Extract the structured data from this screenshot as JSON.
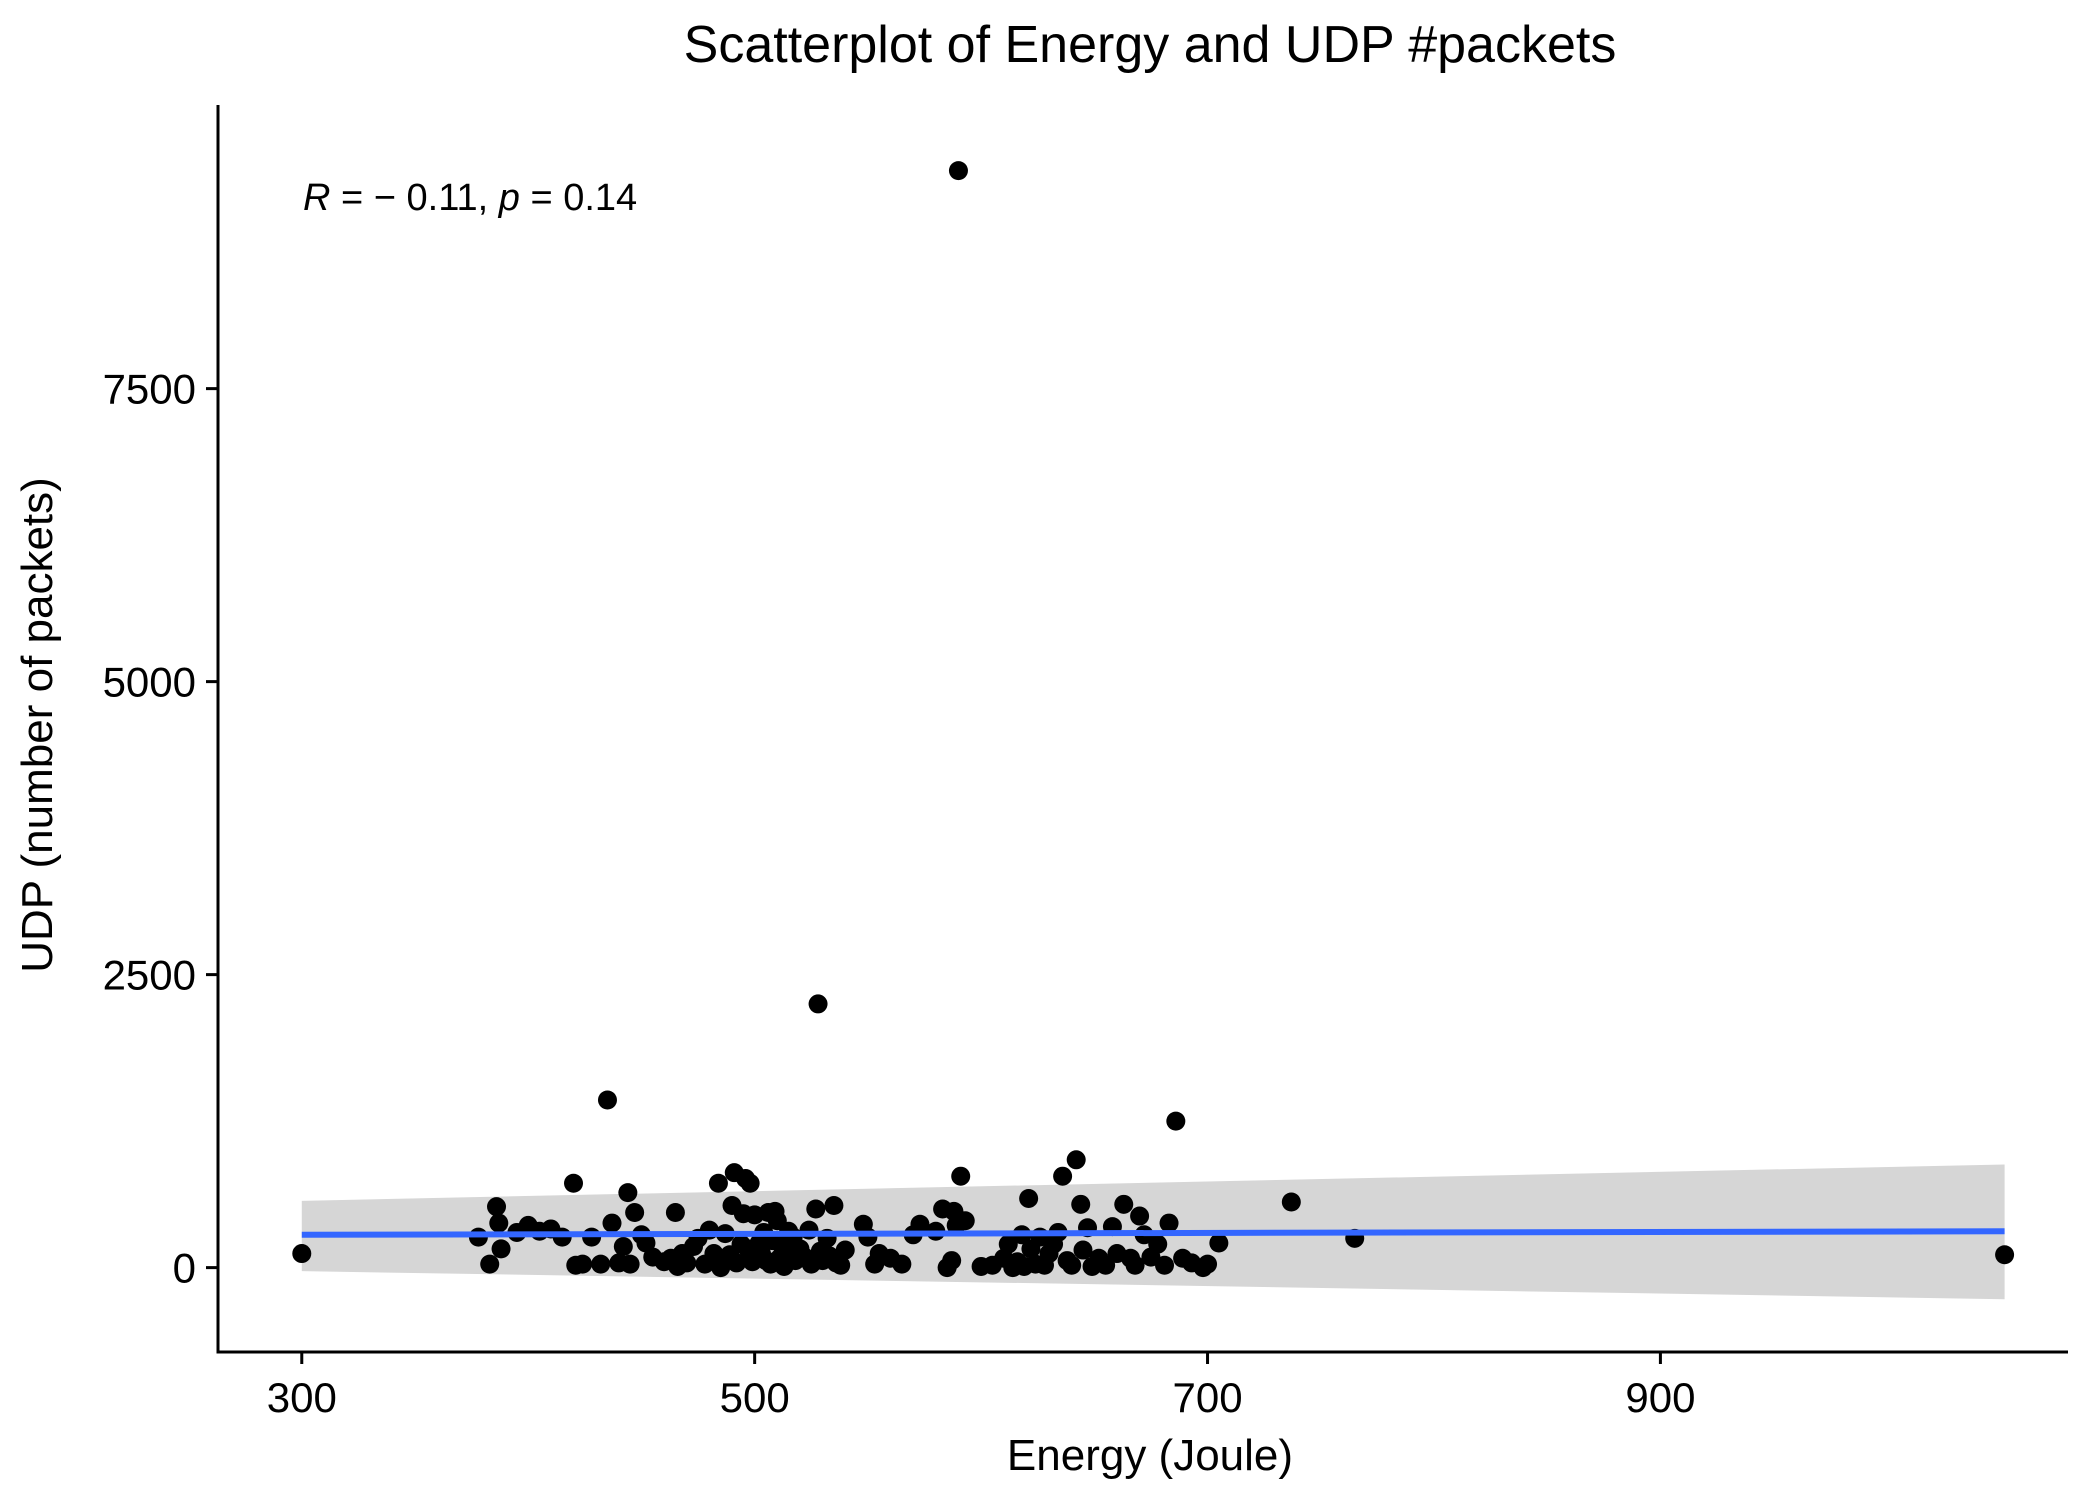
{
  "chart_data": {
    "type": "scatter",
    "title": "Scatterplot of Energy and UDP #packets",
    "xlabel": "Energy (Joule)",
    "ylabel": "UDP (number of packets)",
    "xlim": [
      263,
      1080
    ],
    "ylim": [
      -720,
      9920
    ],
    "x_ticks": [
      300,
      500,
      700,
      900
    ],
    "y_ticks": [
      0,
      2500,
      5000,
      7500
    ],
    "grid": false,
    "annotation": {
      "R_symbol": "R",
      "R_text": " = − 0.11, ",
      "p_symbol": "p",
      "p_text": " = 0.14"
    },
    "regression": {
      "color": "#3366ff",
      "band_color": "#d6d6d6",
      "x": [
        300,
        1052
      ],
      "y": [
        280,
        310
      ],
      "lower": [
        -30,
        -270
      ],
      "upper": [
        570,
        880
      ]
    },
    "points": [
      {
        "x": 300,
        "y": 120
      },
      {
        "x": 378,
        "y": 260
      },
      {
        "x": 383,
        "y": 30
      },
      {
        "x": 386,
        "y": 520
      },
      {
        "x": 387,
        "y": 380
      },
      {
        "x": 388,
        "y": 160
      },
      {
        "x": 395,
        "y": 300
      },
      {
        "x": 400,
        "y": 360
      },
      {
        "x": 405,
        "y": 310
      },
      {
        "x": 410,
        "y": 330
      },
      {
        "x": 415,
        "y": 260
      },
      {
        "x": 420,
        "y": 720
      },
      {
        "x": 421,
        "y": 20
      },
      {
        "x": 424,
        "y": 30
      },
      {
        "x": 428,
        "y": 260
      },
      {
        "x": 432,
        "y": 30
      },
      {
        "x": 435,
        "y": 1430
      },
      {
        "x": 437,
        "y": 380
      },
      {
        "x": 440,
        "y": 40
      },
      {
        "x": 442,
        "y": 180
      },
      {
        "x": 444,
        "y": 640
      },
      {
        "x": 445,
        "y": 30
      },
      {
        "x": 447,
        "y": 470
      },
      {
        "x": 450,
        "y": 280
      },
      {
        "x": 452,
        "y": 210
      },
      {
        "x": 455,
        "y": 90
      },
      {
        "x": 460,
        "y": 50
      },
      {
        "x": 463,
        "y": 80
      },
      {
        "x": 465,
        "y": 470
      },
      {
        "x": 466,
        "y": 10
      },
      {
        "x": 468,
        "y": 120
      },
      {
        "x": 470,
        "y": 40
      },
      {
        "x": 473,
        "y": 180
      },
      {
        "x": 475,
        "y": 250
      },
      {
        "x": 478,
        "y": 30
      },
      {
        "x": 480,
        "y": 320
      },
      {
        "x": 482,
        "y": 120
      },
      {
        "x": 484,
        "y": 720
      },
      {
        "x": 485,
        "y": 0
      },
      {
        "x": 487,
        "y": 290
      },
      {
        "x": 489,
        "y": 110
      },
      {
        "x": 490,
        "y": 530
      },
      {
        "x": 491,
        "y": 810
      },
      {
        "x": 492,
        "y": 40
      },
      {
        "x": 494,
        "y": 200
      },
      {
        "x": 495,
        "y": 460
      },
      {
        "x": 496,
        "y": 760
      },
      {
        "x": 497,
        "y": 160
      },
      {
        "x": 498,
        "y": 720
      },
      {
        "x": 499,
        "y": 50
      },
      {
        "x": 500,
        "y": 450
      },
      {
        "x": 502,
        "y": 210
      },
      {
        "x": 503,
        "y": 120
      },
      {
        "x": 504,
        "y": 300
      },
      {
        "x": 505,
        "y": 60
      },
      {
        "x": 506,
        "y": 470
      },
      {
        "x": 507,
        "y": 30
      },
      {
        "x": 508,
        "y": 230
      },
      {
        "x": 509,
        "y": 480
      },
      {
        "x": 510,
        "y": 400
      },
      {
        "x": 511,
        "y": 80
      },
      {
        "x": 512,
        "y": 190
      },
      {
        "x": 513,
        "y": 10
      },
      {
        "x": 515,
        "y": 310
      },
      {
        "x": 516,
        "y": 120
      },
      {
        "x": 517,
        "y": 260
      },
      {
        "x": 518,
        "y": 60
      },
      {
        "x": 520,
        "y": 160
      },
      {
        "x": 522,
        "y": 90
      },
      {
        "x": 524,
        "y": 320
      },
      {
        "x": 525,
        "y": 30
      },
      {
        "x": 527,
        "y": 500
      },
      {
        "x": 528,
        "y": 2250
      },
      {
        "x": 529,
        "y": 140
      },
      {
        "x": 530,
        "y": 60
      },
      {
        "x": 532,
        "y": 250
      },
      {
        "x": 533,
        "y": 100
      },
      {
        "x": 535,
        "y": 530
      },
      {
        "x": 536,
        "y": 40
      },
      {
        "x": 538,
        "y": 20
      },
      {
        "x": 540,
        "y": 150
      },
      {
        "x": 548,
        "y": 370
      },
      {
        "x": 550,
        "y": 260
      },
      {
        "x": 553,
        "y": 30
      },
      {
        "x": 555,
        "y": 120
      },
      {
        "x": 560,
        "y": 80
      },
      {
        "x": 565,
        "y": 30
      },
      {
        "x": 570,
        "y": 280
      },
      {
        "x": 573,
        "y": 370
      },
      {
        "x": 580,
        "y": 310
      },
      {
        "x": 583,
        "y": 500
      },
      {
        "x": 585,
        "y": 0
      },
      {
        "x": 587,
        "y": 60
      },
      {
        "x": 588,
        "y": 480
      },
      {
        "x": 589,
        "y": 360
      },
      {
        "x": 590,
        "y": 9360
      },
      {
        "x": 591,
        "y": 780
      },
      {
        "x": 593,
        "y": 400
      },
      {
        "x": 600,
        "y": 10
      },
      {
        "x": 605,
        "y": 20
      },
      {
        "x": 610,
        "y": 80
      },
      {
        "x": 612,
        "y": 200
      },
      {
        "x": 614,
        "y": 0
      },
      {
        "x": 616,
        "y": 50
      },
      {
        "x": 618,
        "y": 280
      },
      {
        "x": 619,
        "y": 10
      },
      {
        "x": 621,
        "y": 590
      },
      {
        "x": 622,
        "y": 160
      },
      {
        "x": 624,
        "y": 30
      },
      {
        "x": 626,
        "y": 260
      },
      {
        "x": 628,
        "y": 20
      },
      {
        "x": 630,
        "y": 120
      },
      {
        "x": 632,
        "y": 200
      },
      {
        "x": 634,
        "y": 300
      },
      {
        "x": 636,
        "y": 780
      },
      {
        "x": 638,
        "y": 60
      },
      {
        "x": 640,
        "y": 20
      },
      {
        "x": 642,
        "y": 920
      },
      {
        "x": 644,
        "y": 540
      },
      {
        "x": 645,
        "y": 150
      },
      {
        "x": 647,
        "y": 340
      },
      {
        "x": 649,
        "y": 10
      },
      {
        "x": 652,
        "y": 80
      },
      {
        "x": 655,
        "y": 20
      },
      {
        "x": 658,
        "y": 350
      },
      {
        "x": 660,
        "y": 120
      },
      {
        "x": 663,
        "y": 540
      },
      {
        "x": 666,
        "y": 80
      },
      {
        "x": 668,
        "y": 20
      },
      {
        "x": 670,
        "y": 440
      },
      {
        "x": 672,
        "y": 280
      },
      {
        "x": 675,
        "y": 90
      },
      {
        "x": 678,
        "y": 200
      },
      {
        "x": 681,
        "y": 20
      },
      {
        "x": 683,
        "y": 380
      },
      {
        "x": 686,
        "y": 1250
      },
      {
        "x": 689,
        "y": 80
      },
      {
        "x": 693,
        "y": 40
      },
      {
        "x": 698,
        "y": 0
      },
      {
        "x": 700,
        "y": 30
      },
      {
        "x": 705,
        "y": 210
      },
      {
        "x": 737,
        "y": 560
      },
      {
        "x": 765,
        "y": 250
      },
      {
        "x": 1052,
        "y": 110
      }
    ]
  }
}
